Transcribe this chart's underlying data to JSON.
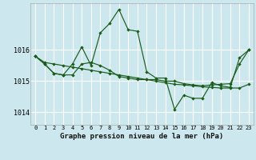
{
  "title": "Graphe pression niveau de la mer (hPa)",
  "background_color": "#cce8ee",
  "grid_color": "#ffffff",
  "line_color": "#1a5c1a",
  "x_ticks": [
    0,
    1,
    2,
    3,
    4,
    5,
    6,
    7,
    8,
    9,
    10,
    11,
    12,
    13,
    14,
    15,
    16,
    17,
    18,
    19,
    20,
    21,
    22,
    23
  ],
  "ylim": [
    1013.6,
    1017.5
  ],
  "yticks": [
    1014,
    1015,
    1016
  ],
  "series1": [
    1015.8,
    1015.55,
    1015.25,
    1015.2,
    1015.55,
    1016.1,
    1015.5,
    1016.55,
    1016.85,
    1017.3,
    1016.65,
    1016.6,
    1015.3,
    1015.1,
    1015.1,
    1014.1,
    1014.55,
    1014.45,
    1014.45,
    1014.95,
    1014.85,
    1014.8,
    1015.75,
    1016.0
  ],
  "series2": [
    1015.8,
    1015.6,
    1015.55,
    1015.5,
    1015.45,
    1015.4,
    1015.35,
    1015.3,
    1015.25,
    1015.2,
    1015.15,
    1015.1,
    1015.05,
    1015.0,
    1014.95,
    1014.9,
    1014.88,
    1014.85,
    1014.82,
    1014.8,
    1014.78,
    1014.78,
    1014.78,
    1014.9
  ],
  "series3": [
    1015.8,
    1015.55,
    1015.25,
    1015.2,
    1015.2,
    1015.55,
    1015.6,
    1015.5,
    1015.35,
    1015.15,
    1015.1,
    1015.05,
    1015.05,
    1015.05,
    1015.0,
    1015.0,
    1014.92,
    1014.88,
    1014.85,
    1014.88,
    1014.9,
    1014.92,
    1015.55,
    1016.0
  ]
}
